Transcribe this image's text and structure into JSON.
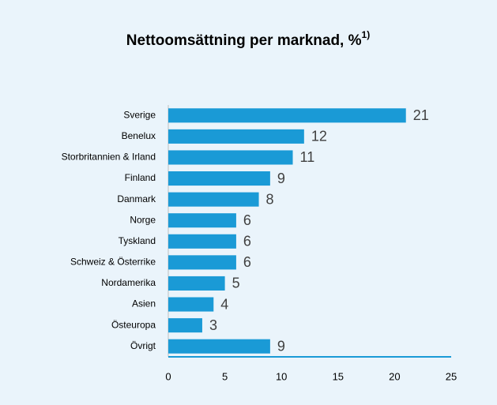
{
  "chart_data": {
    "type": "bar",
    "orientation": "horizontal",
    "title": "Nettoomsättning per marknad, %",
    "title_note": "1)",
    "categories": [
      "Sverige",
      "Benelux",
      "Storbritannien & Irland",
      "Finland",
      "Danmark",
      "Norge",
      "Tyskland",
      "Schweiz & Österrike",
      "Nordamerika",
      "Asien",
      "Östeuropa",
      "Övrigt"
    ],
    "values": [
      21,
      12,
      11,
      9,
      8,
      6,
      6,
      6,
      5,
      4,
      3,
      9
    ],
    "color": "#1a9ad6",
    "xlim": [
      0,
      25
    ],
    "xticks": [
      0,
      5,
      10,
      15,
      20,
      25
    ],
    "grid": false
  }
}
